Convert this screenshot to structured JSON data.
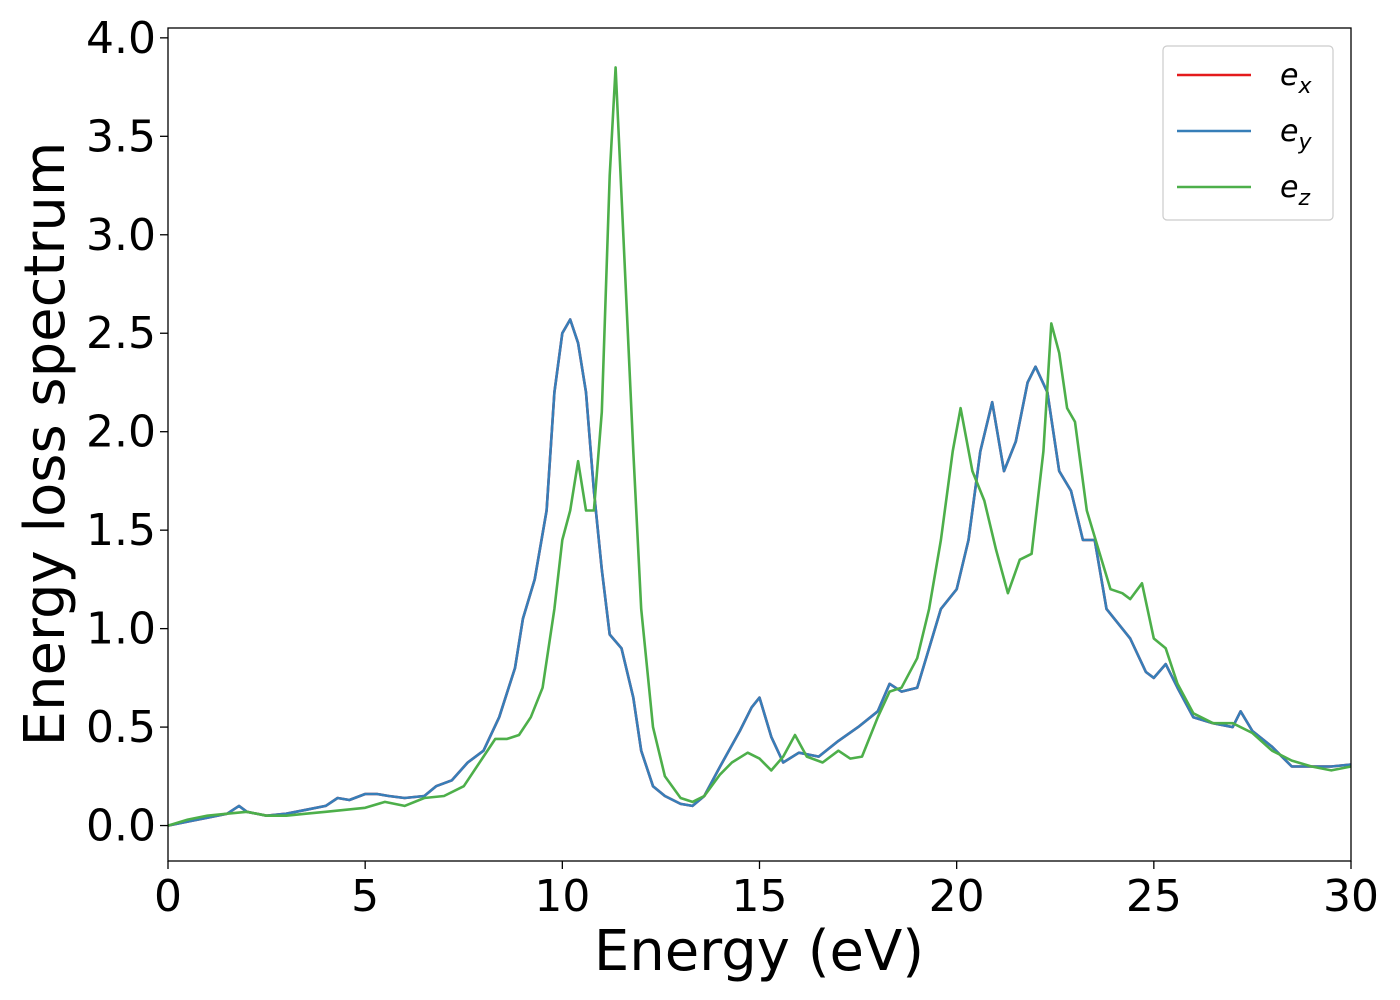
{
  "chart_data": {
    "type": "line",
    "title": "",
    "xlabel": "Energy (eV)",
    "ylabel": "Energy loss spectrum",
    "xlim": [
      0,
      30
    ],
    "ylim": [
      -0.18,
      4.05
    ],
    "xticks": [
      0,
      5,
      10,
      15,
      20,
      25,
      30
    ],
    "xtick_labels": [
      "0",
      "5",
      "10",
      "15",
      "20",
      "25",
      "30"
    ],
    "yticks": [
      0.0,
      0.5,
      1.0,
      1.5,
      2.0,
      2.5,
      3.0,
      3.5,
      4.0
    ],
    "ytick_labels": [
      "0.0",
      "0.5",
      "1.0",
      "1.5",
      "2.0",
      "2.5",
      "3.0",
      "3.5",
      "4.0"
    ],
    "grid": false,
    "legend_position": "top-right",
    "series": [
      {
        "legend_base": "e",
        "legend_sub": "x",
        "color": "#e41a1c",
        "x": [
          0,
          0.5,
          1,
          1.5,
          1.8,
          2,
          2.5,
          3,
          3.5,
          4,
          4.3,
          4.6,
          5,
          5.3,
          5.6,
          6,
          6.5,
          6.8,
          7.2,
          7.6,
          8,
          8.4,
          8.8,
          9,
          9.3,
          9.6,
          9.8,
          10,
          10.2,
          10.4,
          10.6,
          10.8,
          11,
          11.2,
          11.5,
          11.8,
          12,
          12.3,
          12.6,
          13,
          13.3,
          13.6,
          14,
          14.5,
          14.8,
          15,
          15.3,
          15.6,
          16,
          16.5,
          17,
          17.5,
          18,
          18.3,
          18.6,
          19,
          19.3,
          19.6,
          20,
          20.3,
          20.6,
          20.9,
          21.2,
          21.5,
          21.8,
          22,
          22.3,
          22.6,
          22.9,
          23.2,
          23.5,
          23.8,
          24,
          24.4,
          24.8,
          25,
          25.3,
          25.6,
          26,
          26.5,
          27,
          27.2,
          27.5,
          28,
          28.5,
          29,
          29.5,
          30
        ],
        "y": [
          0,
          0.02,
          0.04,
          0.06,
          0.1,
          0.07,
          0.05,
          0.06,
          0.08,
          0.1,
          0.14,
          0.13,
          0.16,
          0.16,
          0.15,
          0.14,
          0.15,
          0.2,
          0.23,
          0.32,
          0.38,
          0.55,
          0.8,
          1.05,
          1.25,
          1.6,
          2.2,
          2.5,
          2.57,
          2.45,
          2.2,
          1.7,
          1.3,
          0.97,
          0.9,
          0.65,
          0.38,
          0.2,
          0.15,
          0.11,
          0.1,
          0.15,
          0.3,
          0.48,
          0.6,
          0.65,
          0.45,
          0.32,
          0.37,
          0.35,
          0.43,
          0.5,
          0.58,
          0.72,
          0.68,
          0.7,
          0.9,
          1.1,
          1.2,
          1.45,
          1.9,
          2.15,
          1.8,
          1.95,
          2.25,
          2.33,
          2.2,
          1.8,
          1.7,
          1.45,
          1.45,
          1.1,
          1.05,
          0.95,
          0.78,
          0.75,
          0.82,
          0.7,
          0.55,
          0.52,
          0.5,
          0.58,
          0.48,
          0.4,
          0.3,
          0.3,
          0.3,
          0.31
        ]
      },
      {
        "legend_base": "e",
        "legend_sub": "y",
        "color": "#377eb8",
        "x": [
          0,
          0.5,
          1,
          1.5,
          1.8,
          2,
          2.5,
          3,
          3.5,
          4,
          4.3,
          4.6,
          5,
          5.3,
          5.6,
          6,
          6.5,
          6.8,
          7.2,
          7.6,
          8,
          8.4,
          8.8,
          9,
          9.3,
          9.6,
          9.8,
          10,
          10.2,
          10.4,
          10.6,
          10.8,
          11,
          11.2,
          11.5,
          11.8,
          12,
          12.3,
          12.6,
          13,
          13.3,
          13.6,
          14,
          14.5,
          14.8,
          15,
          15.3,
          15.6,
          16,
          16.5,
          17,
          17.5,
          18,
          18.3,
          18.6,
          19,
          19.3,
          19.6,
          20,
          20.3,
          20.6,
          20.9,
          21.2,
          21.5,
          21.8,
          22,
          22.3,
          22.6,
          22.9,
          23.2,
          23.5,
          23.8,
          24,
          24.4,
          24.8,
          25,
          25.3,
          25.6,
          26,
          26.5,
          27,
          27.2,
          27.5,
          28,
          28.5,
          29,
          29.5,
          30
        ],
        "y": [
          0,
          0.02,
          0.04,
          0.06,
          0.1,
          0.07,
          0.05,
          0.06,
          0.08,
          0.1,
          0.14,
          0.13,
          0.16,
          0.16,
          0.15,
          0.14,
          0.15,
          0.2,
          0.23,
          0.32,
          0.38,
          0.55,
          0.8,
          1.05,
          1.25,
          1.6,
          2.2,
          2.5,
          2.57,
          2.45,
          2.2,
          1.7,
          1.3,
          0.97,
          0.9,
          0.65,
          0.38,
          0.2,
          0.15,
          0.11,
          0.1,
          0.15,
          0.3,
          0.48,
          0.6,
          0.65,
          0.45,
          0.32,
          0.37,
          0.35,
          0.43,
          0.5,
          0.58,
          0.72,
          0.68,
          0.7,
          0.9,
          1.1,
          1.2,
          1.45,
          1.9,
          2.15,
          1.8,
          1.95,
          2.25,
          2.33,
          2.2,
          1.8,
          1.7,
          1.45,
          1.45,
          1.1,
          1.05,
          0.95,
          0.78,
          0.75,
          0.82,
          0.7,
          0.55,
          0.52,
          0.5,
          0.58,
          0.48,
          0.4,
          0.3,
          0.3,
          0.3,
          0.31
        ]
      },
      {
        "legend_base": "e",
        "legend_sub": "z",
        "color": "#4daf4a",
        "x": [
          0,
          0.5,
          1,
          1.5,
          2,
          2.5,
          3,
          3.5,
          4,
          4.5,
          5,
          5.5,
          6,
          6.5,
          7,
          7.5,
          8,
          8.3,
          8.6,
          8.9,
          9.2,
          9.5,
          9.8,
          10,
          10.2,
          10.4,
          10.6,
          10.8,
          11,
          11.2,
          11.35,
          11.5,
          11.8,
          12,
          12.3,
          12.6,
          13,
          13.3,
          13.6,
          14,
          14.3,
          14.7,
          15,
          15.3,
          15.6,
          15.9,
          16.2,
          16.6,
          17,
          17.3,
          17.6,
          18,
          18.3,
          18.6,
          19,
          19.3,
          19.6,
          19.9,
          20.1,
          20.4,
          20.7,
          21,
          21.3,
          21.6,
          21.9,
          22.2,
          22.4,
          22.6,
          22.8,
          23,
          23.3,
          23.6,
          23.9,
          24.2,
          24.4,
          24.7,
          25,
          25.3,
          25.6,
          26,
          26.5,
          27,
          27.5,
          28,
          28.5,
          29,
          29.5,
          30
        ],
        "y": [
          0,
          0.03,
          0.05,
          0.06,
          0.07,
          0.05,
          0.05,
          0.06,
          0.07,
          0.08,
          0.09,
          0.12,
          0.1,
          0.14,
          0.15,
          0.2,
          0.35,
          0.44,
          0.44,
          0.46,
          0.55,
          0.7,
          1.1,
          1.45,
          1.6,
          1.85,
          1.6,
          1.6,
          2.1,
          3.3,
          3.85,
          3.2,
          1.9,
          1.1,
          0.5,
          0.25,
          0.14,
          0.12,
          0.15,
          0.26,
          0.32,
          0.37,
          0.34,
          0.28,
          0.35,
          0.46,
          0.35,
          0.32,
          0.38,
          0.34,
          0.35,
          0.55,
          0.68,
          0.7,
          0.85,
          1.1,
          1.45,
          1.9,
          2.12,
          1.8,
          1.65,
          1.4,
          1.18,
          1.35,
          1.38,
          1.9,
          2.55,
          2.4,
          2.12,
          2.05,
          1.6,
          1.4,
          1.2,
          1.18,
          1.15,
          1.23,
          0.95,
          0.9,
          0.72,
          0.57,
          0.52,
          0.52,
          0.47,
          0.38,
          0.33,
          0.3,
          0.28,
          0.3
        ]
      }
    ]
  }
}
